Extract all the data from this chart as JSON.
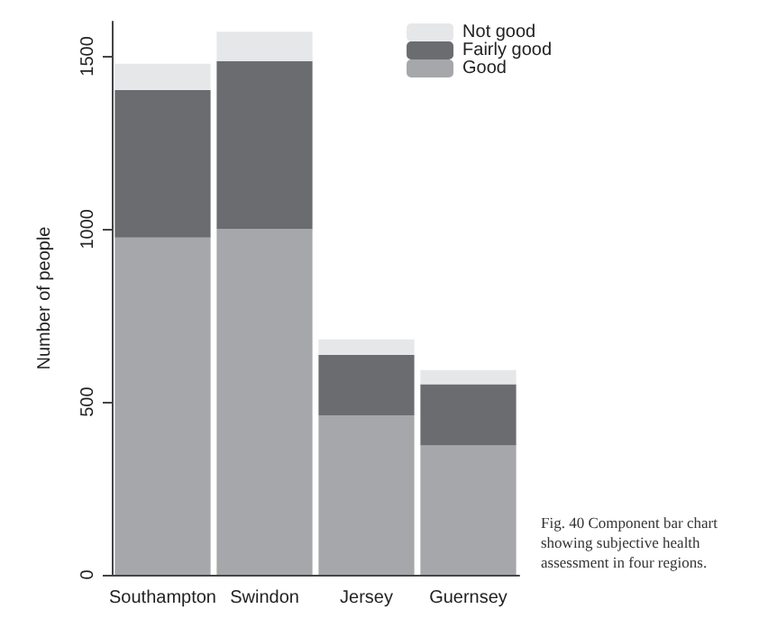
{
  "chart_data": {
    "type": "bar",
    "stacked": true,
    "ylabel": "Number of people",
    "categories": [
      "Southampton",
      "Swindon",
      "Jersey",
      "Guernsey"
    ],
    "series": [
      {
        "name": "Good",
        "color": "#a6a7aa",
        "values": [
          975,
          1000,
          461,
          374
        ]
      },
      {
        "name": "Fairly good",
        "color": "#6b6c6f",
        "values": [
          427,
          486,
          175,
          177
        ]
      },
      {
        "name": "Not good",
        "color": "#e6e7e9",
        "values": [
          76,
          85,
          45,
          41
        ]
      }
    ],
    "ylim": [
      0,
      1600
    ],
    "yticks": [
      0,
      500,
      1000,
      1500
    ],
    "grid": false,
    "legend": "top right",
    "annotations": [
      "Fig. 40    Component bar chart showing subjective health assessment in four regions."
    ]
  }
}
